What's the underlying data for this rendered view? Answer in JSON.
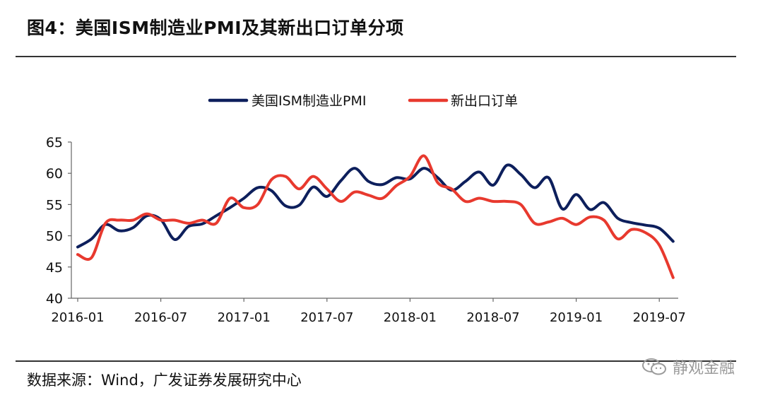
{
  "header": {
    "title": "图4：美国ISM制造业PMI及其新出口订单分项"
  },
  "footer": {
    "source": "数据来源：Wind，广发证券发展研究中心",
    "watermark": "静观金融"
  },
  "chart_data": {
    "type": "line",
    "title": "",
    "xlabel": "",
    "ylabel": "",
    "ylim": [
      40,
      65
    ],
    "yticks": [
      40,
      45,
      50,
      55,
      60,
      65
    ],
    "xticks": [
      "2016-01",
      "2016-07",
      "2017-01",
      "2017-07",
      "2018-01",
      "2018-07",
      "2019-01",
      "2019-07"
    ],
    "legend_position": "top-center",
    "grid": false,
    "x": [
      "2016-01",
      "2016-02",
      "2016-03",
      "2016-04",
      "2016-05",
      "2016-06",
      "2016-07",
      "2016-08",
      "2016-09",
      "2016-10",
      "2016-11",
      "2016-12",
      "2017-01",
      "2017-02",
      "2017-03",
      "2017-04",
      "2017-05",
      "2017-06",
      "2017-07",
      "2017-08",
      "2017-09",
      "2017-10",
      "2017-11",
      "2017-12",
      "2018-01",
      "2018-02",
      "2018-03",
      "2018-04",
      "2018-05",
      "2018-06",
      "2018-07",
      "2018-08",
      "2018-09",
      "2018-10",
      "2018-11",
      "2018-12",
      "2019-01",
      "2019-02",
      "2019-03",
      "2019-04",
      "2019-05",
      "2019-06",
      "2019-07",
      "2019-08"
    ],
    "series": [
      {
        "name": "美国ISM制造业PMI",
        "color": "#0d1f5c",
        "values": [
          48.2,
          49.5,
          51.8,
          50.8,
          51.3,
          53.2,
          52.6,
          49.4,
          51.5,
          51.9,
          53.2,
          54.5,
          56.0,
          57.7,
          57.2,
          54.8,
          54.9,
          57.8,
          56.3,
          58.8,
          60.8,
          58.7,
          58.2,
          59.3,
          59.1,
          60.8,
          59.3,
          57.3,
          58.7,
          60.2,
          58.1,
          61.3,
          59.8,
          57.7,
          59.3,
          54.3,
          56.6,
          54.2,
          55.3,
          52.8,
          52.1,
          51.7,
          51.2,
          49.1
        ]
      },
      {
        "name": "新出口订单",
        "color": "#e8392e",
        "values": [
          47.0,
          46.5,
          52.0,
          52.5,
          52.5,
          53.5,
          52.5,
          52.5,
          52.0,
          52.5,
          52.0,
          56.0,
          54.5,
          55.0,
          59.0,
          59.5,
          57.5,
          59.5,
          57.5,
          55.5,
          57.0,
          56.5,
          56.0,
          58.0,
          59.5,
          62.8,
          58.5,
          57.5,
          55.5,
          56.0,
          55.5,
          55.5,
          55.0,
          52.0,
          52.2,
          52.8,
          51.8,
          53.0,
          52.5,
          49.5,
          51.0,
          50.5,
          48.5,
          43.3
        ]
      }
    ]
  }
}
